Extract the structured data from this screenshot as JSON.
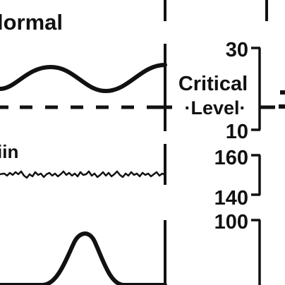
{
  "figure": {
    "colors": {
      "ink": "#111111",
      "paper": "#ffffff"
    },
    "panel_label_top": "lormal",
    "panel_label_mid": "iin",
    "critical_label_line1": "Critical",
    "critical_label_line2": "·Level·",
    "axis_top": {
      "tick_high": "30",
      "tick_low": "10"
    },
    "axis_mid": {
      "tick_high": "160",
      "tick_low": "140"
    },
    "axis_bottom": {
      "tick_high": "100"
    }
  }
}
